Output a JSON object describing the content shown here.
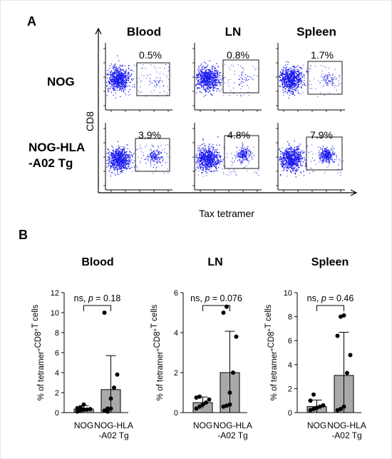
{
  "panel_a": {
    "label": "A",
    "columns": [
      "Blood",
      "LN",
      "Spleen"
    ],
    "rows": [
      "NOG",
      "NOG-HLA",
      "-A02 Tg"
    ],
    "y_axis_label": "CD8",
    "x_axis_label": "Tax tetramer",
    "percentages": [
      [
        "0.5%",
        "0.8%",
        "1.7%"
      ],
      [
        "3.9%",
        "4.8%",
        "7.9%"
      ]
    ]
  },
  "panel_b": {
    "label": "B"
  },
  "chart_data": [
    {
      "type": "bar",
      "title": "Blood",
      "ylabel": "% of tetramer+CD8+T cells",
      "categories": [
        "NOG",
        "NOG-HLA\n-A02 Tg"
      ],
      "values": [
        0.35,
        2.3
      ],
      "error": [
        0.35,
        3.4
      ],
      "points": [
        [
          0.1,
          0.2,
          0.3,
          0.3,
          0.35,
          0.45,
          0.5,
          0.8
        ],
        [
          0.2,
          0.4,
          1.4,
          2.5,
          3.8,
          10.0,
          0.1,
          0.4
        ]
      ],
      "ylim": [
        0,
        12
      ],
      "yticks": [
        "0",
        "2",
        "4",
        "6",
        "8",
        "10",
        "12"
      ],
      "annotation": "ns, p = 0.18",
      "bar_color": "#a9a9a9"
    },
    {
      "type": "bar",
      "title": "LN",
      "ylabel": "% of tetramer+CD8+T cells",
      "categories": [
        "NOG",
        "NOG-HLA\n-A02 Tg"
      ],
      "values": [
        0.5,
        2.0
      ],
      "error": [
        0.28,
        2.07
      ],
      "points": [
        [
          0.2,
          0.3,
          0.4,
          0.5,
          0.65,
          0.75,
          0.8
        ],
        [
          0.3,
          0.35,
          1.0,
          2.0,
          3.8,
          5.0,
          5.3,
          0.4
        ]
      ],
      "ylim": [
        0,
        6
      ],
      "yticks": [
        "0",
        "2",
        "4",
        "6"
      ],
      "annotation": "ns, p = 0.076",
      "bar_color": "#a9a9a9"
    },
    {
      "type": "bar",
      "title": "Spleen",
      "ylabel": "% of tetramer+CD8+T cells",
      "categories": [
        "NOG",
        "NOG-HLA\n-A02 Tg"
      ],
      "values": [
        0.5,
        3.1
      ],
      "error": [
        0.55,
        3.6
      ],
      "points": [
        [
          0.2,
          0.3,
          0.4,
          0.5,
          0.6,
          1.0,
          1.5
        ],
        [
          0.2,
          0.3,
          0.5,
          3.3,
          4.8,
          6.4,
          8.0,
          8.1
        ]
      ],
      "ylim": [
        0,
        10
      ],
      "yticks": [
        "0",
        "2",
        "4",
        "6",
        "8",
        "10"
      ],
      "annotation": "ns, p = 0.46",
      "bar_color": "#a9a9a9"
    }
  ]
}
